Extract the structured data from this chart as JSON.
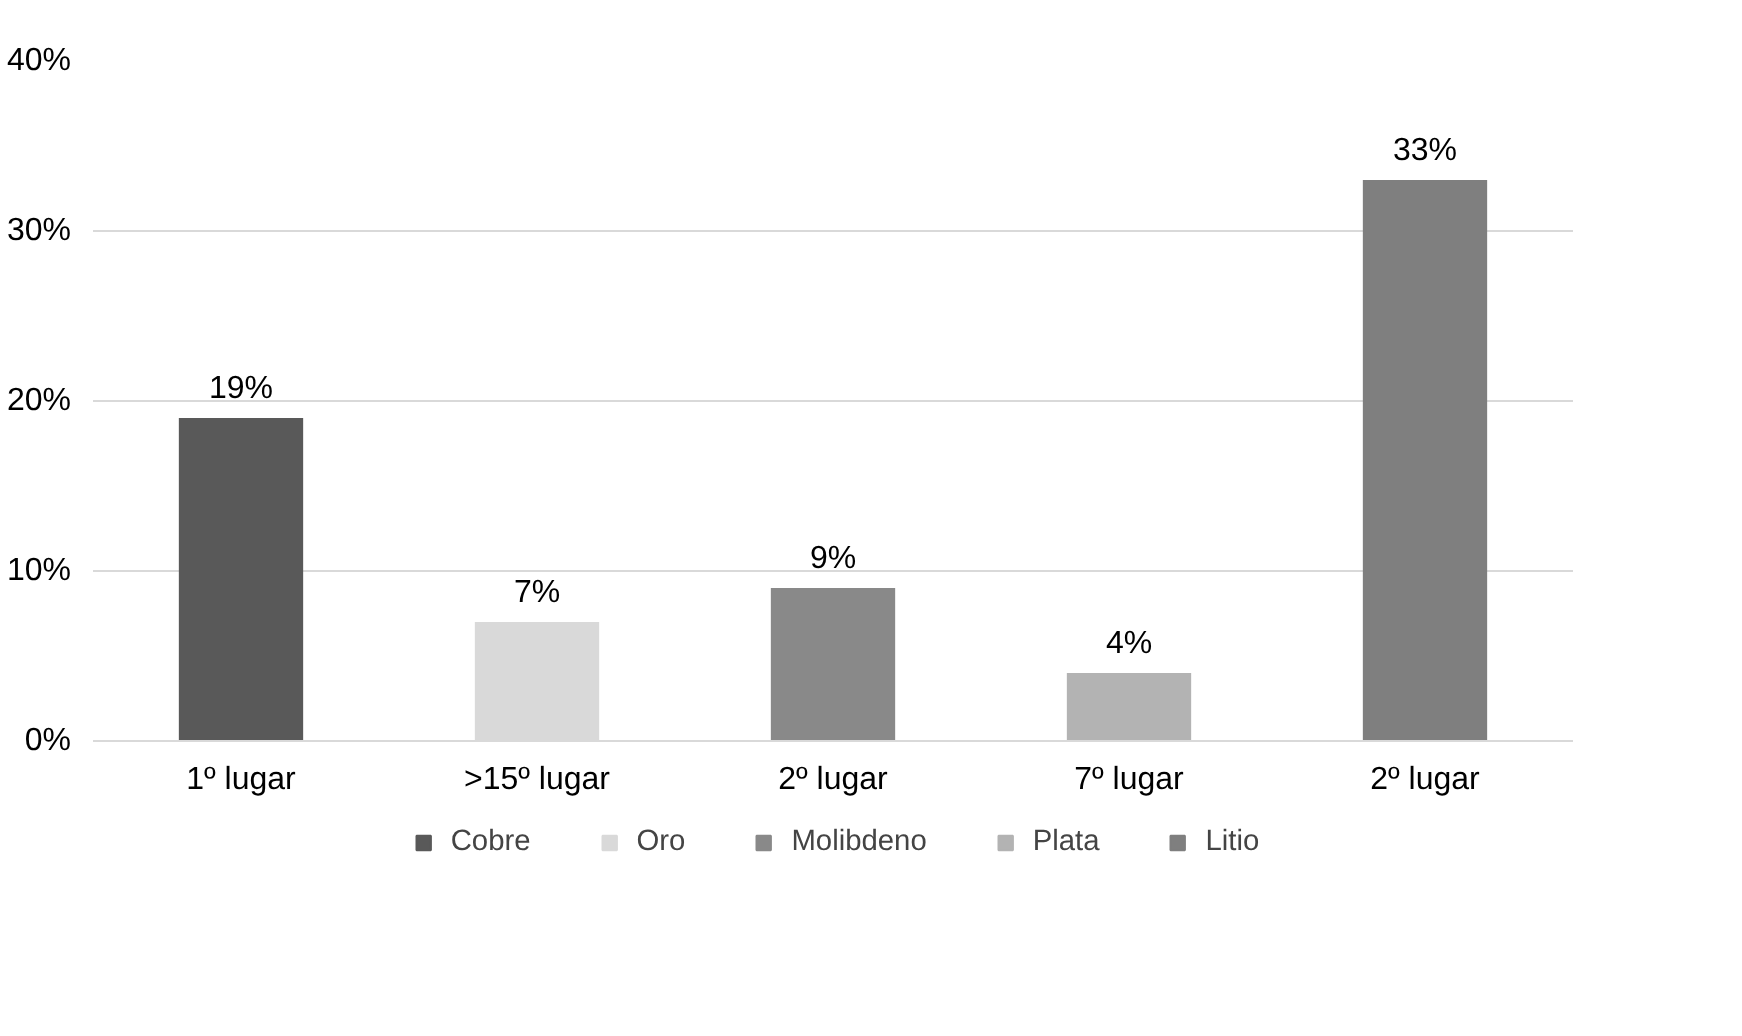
{
  "chart_data": {
    "type": "bar",
    "categories": [
      "1º lugar",
      ">15º lugar",
      "2º lugar",
      "7º lugar",
      "2º lugar"
    ],
    "series": [
      {
        "name": "Cobre",
        "color": "#595959",
        "values": [
          19,
          null,
          null,
          null,
          null
        ],
        "value_labels": [
          "19%",
          null,
          null,
          null,
          null
        ]
      },
      {
        "name": "Oro",
        "color": "#d9d9d9",
        "values": [
          null,
          7,
          null,
          null,
          null
        ],
        "value_labels": [
          null,
          "7%",
          null,
          null,
          null
        ]
      },
      {
        "name": "Molibdeno",
        "color": "#898989",
        "values": [
          null,
          null,
          9,
          null,
          null
        ],
        "value_labels": [
          null,
          null,
          "9%",
          null,
          null
        ]
      },
      {
        "name": "Plata",
        "color": "#b3b3b3",
        "values": [
          null,
          null,
          null,
          4,
          null
        ],
        "value_labels": [
          null,
          null,
          null,
          "4%",
          null
        ]
      },
      {
        "name": "Litio",
        "color": "#7f7f7f",
        "values": [
          null,
          null,
          null,
          null,
          33
        ],
        "value_labels": [
          null,
          null,
          null,
          null,
          "33%"
        ]
      }
    ],
    "ylim": [
      0,
      40
    ],
    "yticks": [
      {
        "value": 0,
        "label": "0%"
      },
      {
        "value": 10,
        "label": "10%"
      },
      {
        "value": 20,
        "label": "20%"
      },
      {
        "value": 30,
        "label": "30%"
      },
      {
        "value": 40,
        "label": "40%"
      }
    ],
    "grid": "y",
    "legend": "bottom"
  }
}
